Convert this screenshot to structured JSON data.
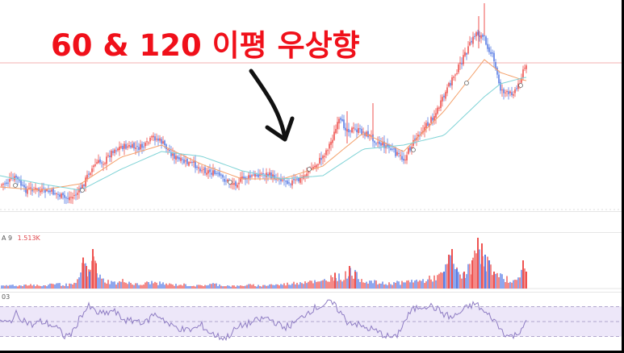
{
  "headline": "60 & 120 이평 우상향",
  "colors": {
    "up": "#ef5350",
    "down": "#5b7ee5",
    "ma_fast": "#f4a06a",
    "ma_slow": "#7fd3d6",
    "rsi_line": "#8e7cc3",
    "rsi_band": "#ede7f9",
    "annotation": "#111111",
    "headline": "#f0101a",
    "price_line": "#f3b0b0"
  },
  "volume_legend": {
    "name": "A 9",
    "value": "1.513K"
  },
  "rsi_legend": {
    "name": "03"
  },
  "chart_data": [
    {
      "type": "candlestick",
      "series": [
        {
          "name": "",
          "role": "price-close",
          "x": [
            0,
            10,
            20,
            30,
            40,
            50,
            60,
            70,
            80,
            90,
            100,
            110,
            120,
            130,
            140,
            150,
            160,
            170,
            180,
            190,
            200,
            210,
            220,
            230,
            240,
            250,
            260,
            270,
            280,
            290,
            300,
            310,
            320,
            330,
            340,
            350,
            360,
            370,
            380,
            390,
            400,
            410,
            420,
            430,
            440,
            450,
            460,
            470,
            480,
            490,
            500,
            510,
            520,
            530,
            540,
            550,
            560,
            570,
            580,
            590,
            600,
            610,
            620,
            630,
            640,
            650
          ],
          "y": [
            230,
            226,
            220,
            236,
            234,
            237,
            238,
            240,
            246,
            244,
            236,
            214,
            202,
            200,
            186,
            182,
            182,
            184,
            181,
            170,
            176,
            188,
            198,
            202,
            204,
            210,
            213,
            218,
            224,
            228,
            222,
            220,
            216,
            216,
            220,
            222,
            226,
            224,
            214,
            206,
            194,
            176,
            150,
            160,
            161,
            164,
            170,
            178,
            182,
            190,
            198,
            180,
            164,
            154,
            140,
            120,
            98,
            80,
            60,
            40,
            48,
            70,
            110,
            118,
            110,
            84
          ]
        },
        {
          "name": "",
          "role": "ma-fast",
          "x": [
            0,
            50,
            100,
            150,
            200,
            250,
            300,
            350,
            400,
            450,
            500,
            550,
            600,
            620,
            650
          ],
          "y": [
            232,
            236,
            228,
            195,
            180,
            204,
            222,
            222,
            206,
            165,
            188,
            138,
            74,
            90,
            100
          ]
        },
        {
          "name": "",
          "role": "ma-slow",
          "x": [
            0,
            50,
            100,
            150,
            200,
            250,
            300,
            350,
            400,
            450,
            500,
            550,
            600,
            620,
            650
          ],
          "y": [
            218,
            228,
            236,
            210,
            188,
            194,
            212,
            222,
            218,
            185,
            180,
            168,
            120,
            104,
            96
          ]
        }
      ],
      "ylim": [
        0,
        262
      ]
    },
    {
      "type": "bar",
      "series": [
        {
          "name": "",
          "role": "volume",
          "x": [
            5,
            15,
            25,
            35,
            45,
            55,
            65,
            75,
            85,
            95,
            103,
            107,
            111,
            115,
            119,
            125,
            135,
            145,
            155,
            165,
            175,
            185,
            195,
            205,
            215,
            225,
            235,
            245,
            255,
            265,
            275,
            285,
            295,
            305,
            315,
            325,
            335,
            345,
            355,
            365,
            375,
            385,
            395,
            405,
            415,
            425,
            433,
            440,
            450,
            460,
            470,
            480,
            490,
            500,
            510,
            520,
            530,
            540,
            550,
            556,
            560,
            566,
            575,
            585,
            592,
            597,
            601,
            606,
            612,
            620,
            630,
            640,
            648,
            652
          ],
          "y": [
            0.05,
            0.08,
            0.06,
            0.1,
            0.07,
            0.05,
            0.12,
            0.09,
            0.08,
            0.1,
            0.55,
            0.4,
            0.3,
            0.7,
            0.45,
            0.2,
            0.15,
            0.12,
            0.18,
            0.1,
            0.08,
            0.14,
            0.12,
            0.1,
            0.08,
            0.09,
            0.07,
            0.06,
            0.08,
            0.1,
            0.07,
            0.06,
            0.05,
            0.08,
            0.07,
            0.06,
            0.09,
            0.08,
            0.1,
            0.12,
            0.15,
            0.18,
            0.12,
            0.2,
            0.28,
            0.22,
            0.4,
            0.3,
            0.18,
            0.15,
            0.12,
            0.1,
            0.14,
            0.12,
            0.18,
            0.16,
            0.2,
            0.25,
            0.3,
            0.6,
            0.7,
            0.35,
            0.3,
            0.5,
            0.9,
            0.8,
            0.6,
            0.5,
            0.3,
            0.25,
            0.2,
            0.15,
            0.5,
            0.3
          ],
          "up": [
            true,
            false,
            true,
            false,
            true,
            false,
            true,
            true,
            false,
            true,
            true,
            true,
            false,
            true,
            true,
            false,
            true,
            false,
            true,
            false,
            true,
            true,
            false,
            false,
            true,
            false,
            true,
            false,
            false,
            true,
            false,
            true,
            false,
            true,
            false,
            true,
            false,
            true,
            false,
            true,
            true,
            true,
            false,
            true,
            true,
            false,
            true,
            true,
            false,
            false,
            true,
            false,
            false,
            true,
            true,
            false,
            true,
            true,
            false,
            true,
            true,
            false,
            true,
            true,
            true,
            true,
            false,
            false,
            true,
            false,
            true,
            false,
            true,
            true
          ]
        }
      ],
      "ylim": [
        0,
        1
      ]
    },
    {
      "type": "line",
      "series": [
        {
          "name": "",
          "role": "rsi",
          "x": [
            0,
            10,
            20,
            30,
            40,
            50,
            60,
            70,
            80,
            90,
            100,
            110,
            120,
            130,
            140,
            150,
            160,
            170,
            180,
            190,
            200,
            210,
            220,
            230,
            240,
            250,
            260,
            270,
            280,
            290,
            300,
            310,
            320,
            330,
            340,
            350,
            360,
            370,
            380,
            390,
            400,
            410,
            420,
            430,
            440,
            450,
            460,
            470,
            480,
            490,
            500,
            510,
            520,
            530,
            540,
            550,
            560,
            570,
            580,
            590,
            600,
            610,
            620,
            630,
            640,
            650
          ],
          "y": [
            50,
            48,
            60,
            52,
            45,
            50,
            47,
            42,
            30,
            35,
            58,
            70,
            62,
            60,
            65,
            55,
            50,
            52,
            48,
            60,
            56,
            45,
            42,
            38,
            40,
            45,
            35,
            30,
            28,
            38,
            45,
            48,
            52,
            55,
            50,
            42,
            45,
            52,
            62,
            68,
            72,
            76,
            65,
            50,
            48,
            42,
            40,
            35,
            30,
            28,
            48,
            65,
            70,
            72,
            68,
            60,
            55,
            62,
            70,
            74,
            62,
            55,
            40,
            30,
            32,
            48
          ],
          "bands": [
            70,
            50,
            30
          ]
        }
      ],
      "ylim": [
        10,
        90
      ]
    }
  ]
}
